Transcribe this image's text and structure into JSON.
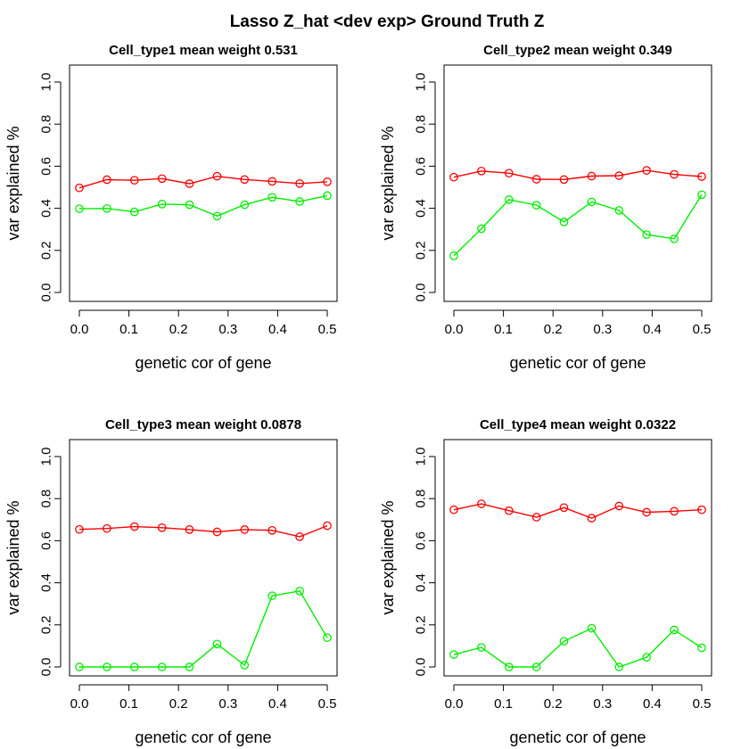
{
  "figure": {
    "title": "Lasso Z_hat <dev exp> Ground Truth Z"
  },
  "chart_data": [
    {
      "type": "line",
      "title": "Cell_type1 mean weight 0.531",
      "xlabel": "genetic cor of gene",
      "ylabel": "var explained %",
      "xlim": [
        0,
        0.5
      ],
      "ylim": [
        0,
        1
      ],
      "xticks": [
        "0.0",
        "0.1",
        "0.2",
        "0.3",
        "0.4",
        "0.5"
      ],
      "yticks": [
        "0.0",
        "0.2",
        "0.4",
        "0.6",
        "0.8",
        "1.0"
      ],
      "grid": false,
      "x": [
        0.0,
        0.0556,
        0.1111,
        0.1667,
        0.2222,
        0.2778,
        0.3333,
        0.3889,
        0.4444,
        0.5
      ],
      "series": [
        {
          "color": "#ff0000",
          "values": [
            0.497,
            0.536,
            0.533,
            0.541,
            0.517,
            0.552,
            0.537,
            0.528,
            0.518,
            0.526
          ]
        },
        {
          "color": "#00ee00",
          "values": [
            0.398,
            0.399,
            0.383,
            0.42,
            0.417,
            0.363,
            0.417,
            0.452,
            0.432,
            0.46
          ]
        }
      ]
    },
    {
      "type": "line",
      "title": "Cell_type2 mean weight 0.349",
      "xlabel": "genetic cor of gene",
      "ylabel": "var explained %",
      "xlim": [
        0,
        0.5
      ],
      "ylim": [
        0,
        1
      ],
      "xticks": [
        "0.0",
        "0.1",
        "0.2",
        "0.3",
        "0.4",
        "0.5"
      ],
      "yticks": [
        "0.0",
        "0.2",
        "0.4",
        "0.6",
        "0.8",
        "1.0"
      ],
      "grid": false,
      "x": [
        0.0,
        0.0556,
        0.1111,
        0.1667,
        0.2222,
        0.2778,
        0.3333,
        0.3889,
        0.4444,
        0.5
      ],
      "series": [
        {
          "color": "#ff0000",
          "values": [
            0.548,
            0.577,
            0.567,
            0.538,
            0.537,
            0.553,
            0.555,
            0.58,
            0.561,
            0.551
          ]
        },
        {
          "color": "#00ee00",
          "values": [
            0.174,
            0.303,
            0.441,
            0.415,
            0.335,
            0.43,
            0.39,
            0.275,
            0.255,
            0.465
          ]
        }
      ]
    },
    {
      "type": "line",
      "title": "Cell_type3 mean weight 0.0878",
      "xlabel": "genetic cor of gene",
      "ylabel": "var explained %",
      "xlim": [
        0,
        0.5
      ],
      "ylim": [
        0,
        1
      ],
      "xticks": [
        "0.0",
        "0.1",
        "0.2",
        "0.3",
        "0.4",
        "0.5"
      ],
      "yticks": [
        "0.0",
        "0.2",
        "0.4",
        "0.6",
        "0.8",
        "1.0"
      ],
      "grid": false,
      "x": [
        0.0,
        0.0556,
        0.1111,
        0.1667,
        0.2222,
        0.2778,
        0.3333,
        0.3889,
        0.4444,
        0.5
      ],
      "series": [
        {
          "color": "#ff0000",
          "values": [
            0.654,
            0.658,
            0.667,
            0.662,
            0.653,
            0.642,
            0.653,
            0.649,
            0.619,
            0.671
          ]
        },
        {
          "color": "#00ee00",
          "values": [
            0.0,
            0.0,
            0.0,
            0.0,
            0.0,
            0.109,
            0.009,
            0.338,
            0.361,
            0.139
          ]
        }
      ]
    },
    {
      "type": "line",
      "title": "Cell_type4 mean weight 0.0322",
      "xlabel": "genetic cor of gene",
      "ylabel": "var explained %",
      "xlim": [
        0,
        0.5
      ],
      "ylim": [
        0,
        1
      ],
      "xticks": [
        "0.0",
        "0.1",
        "0.2",
        "0.3",
        "0.4",
        "0.5"
      ],
      "yticks": [
        "0.0",
        "0.2",
        "0.4",
        "0.6",
        "0.8",
        "1.0"
      ],
      "grid": false,
      "x": [
        0.0,
        0.0556,
        0.1111,
        0.1667,
        0.2222,
        0.2778,
        0.3333,
        0.3889,
        0.4444,
        0.5
      ],
      "series": [
        {
          "color": "#ff0000",
          "values": [
            0.747,
            0.775,
            0.743,
            0.712,
            0.757,
            0.707,
            0.765,
            0.735,
            0.74,
            0.747
          ]
        },
        {
          "color": "#00ee00",
          "values": [
            0.059,
            0.093,
            0.0,
            0.0,
            0.122,
            0.184,
            0.0,
            0.046,
            0.176,
            0.091
          ]
        }
      ]
    }
  ]
}
